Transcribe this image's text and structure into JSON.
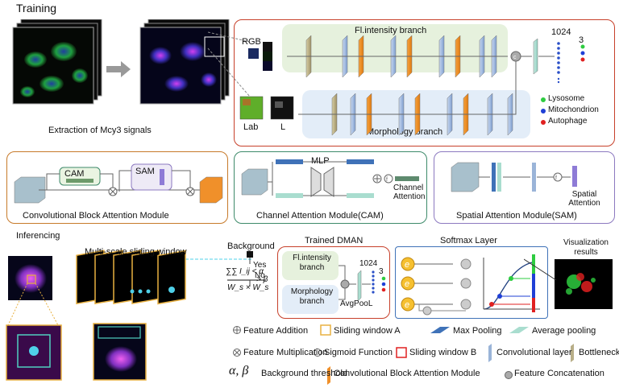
{
  "training": {
    "title": "Training",
    "extract_caption": "Extraction of Mcy3 signals",
    "rgb_label": "RGB",
    "lab_label": "Lab",
    "l_label": "L",
    "fl_branch": "Fl.intensity branch",
    "morph_branch": "Morphology branch",
    "fc_size": "1024",
    "out_size": "3",
    "classes": [
      {
        "label": "Lysosome",
        "color": "#2ecc40"
      },
      {
        "label": "Mitochondrion",
        "color": "#1f3fd6"
      },
      {
        "label": "Autophage",
        "color": "#e02020"
      }
    ]
  },
  "modules": {
    "cbam": {
      "title": "Convolutional Block Attention Module",
      "cam": "CAM",
      "sam": "SAM"
    },
    "cam": {
      "title": "Channel Attention Module(CAM)",
      "mlp": "MLP",
      "out": "Channel Attention"
    },
    "sam": {
      "title": "Spatial Attention Module(SAM)",
      "out": "Spatial Attention"
    }
  },
  "inference": {
    "title": "Inferencing",
    "sliding": "Multi-scale sliding window",
    "background": "Background",
    "yes": "Yes",
    "no": "No",
    "formula_main": "∑∑ I_ij < α",
    "formula_den": "W_s × W_s",
    "formula_beta": "> β",
    "dman_title": "Trained DMAN",
    "fl_branch": "Fl.intensity branch",
    "morph_branch": "Morphology branch",
    "avgpool": "AvgPooL",
    "fc_size": "1024",
    "out_size": "3",
    "softmax_title": "Softmax Layer",
    "vis_title": "Visualization results"
  },
  "legend": {
    "feature_addition": "Feature Addition",
    "sliding_a": "Sliding window A",
    "max_pooling": "Max Pooling",
    "average_pooling": "Average pooling",
    "feature_multiplication": "Feature Multiplication",
    "sigmoid": "Sigmoid Function",
    "sliding_b": "Sliding window B",
    "conv_layer": "Convolutional layer",
    "bottleneck": "Bottleneck layer",
    "alpha_beta": "α, β",
    "background_threshold": "Background threshold",
    "cbam": "Convolutional Block Attention Module",
    "concat": "Feature Concatenation"
  }
}
